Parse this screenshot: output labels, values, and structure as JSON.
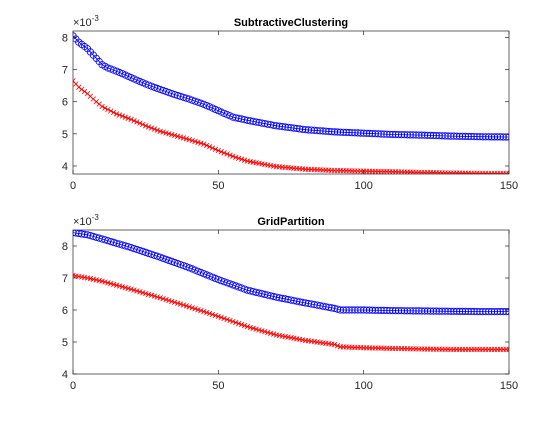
{
  "chart_data": [
    {
      "type": "line",
      "title": "SubtractiveClustering",
      "xlim": [
        0,
        150
      ],
      "ylim": [
        3.75,
        8.2
      ],
      "y_exponent_label": "×10",
      "y_exponent_power": "-3",
      "x_ticks": [
        0,
        50,
        100,
        150
      ],
      "y_ticks": [
        4,
        5,
        6,
        7,
        8
      ],
      "grid": false,
      "series": [
        {
          "marker": "o",
          "color": "#0000ff",
          "x": [
            0,
            2,
            5,
            8,
            10,
            12,
            15,
            20,
            25,
            30,
            35,
            40,
            45,
            50,
            55,
            60,
            70,
            80,
            90,
            100,
            110,
            120,
            130,
            140,
            150
          ],
          "values": [
            8.05,
            7.85,
            7.65,
            7.35,
            7.15,
            7.05,
            6.95,
            6.75,
            6.55,
            6.38,
            6.22,
            6.08,
            5.92,
            5.72,
            5.52,
            5.42,
            5.25,
            5.13,
            5.06,
            5.02,
            4.98,
            4.96,
            4.93,
            4.91,
            4.9
          ]
        },
        {
          "marker": "x",
          "color": "#ff0000",
          "x": [
            0,
            2,
            5,
            8,
            10,
            15,
            20,
            25,
            30,
            35,
            40,
            45,
            50,
            55,
            60,
            70,
            80,
            90,
            100,
            110,
            120,
            130,
            140,
            150
          ],
          "values": [
            6.65,
            6.45,
            6.25,
            6.0,
            5.85,
            5.62,
            5.45,
            5.25,
            5.08,
            4.95,
            4.82,
            4.68,
            4.48,
            4.3,
            4.15,
            3.98,
            3.9,
            3.86,
            3.84,
            3.82,
            3.8,
            3.78,
            3.77,
            3.76
          ]
        }
      ]
    },
    {
      "type": "line",
      "title": "GridPartition",
      "xlim": [
        0,
        150
      ],
      "ylim": [
        4,
        8.5
      ],
      "y_exponent_label": "×10",
      "y_exponent_power": "-3",
      "x_ticks": [
        0,
        50,
        100,
        150
      ],
      "y_ticks": [
        4,
        5,
        6,
        7,
        8
      ],
      "grid": false,
      "series": [
        {
          "marker": "o",
          "color": "#0000ff",
          "x": [
            0,
            5,
            10,
            20,
            30,
            40,
            50,
            60,
            70,
            80,
            90,
            92,
            100,
            110,
            120,
            130,
            140,
            150
          ],
          "values": [
            8.42,
            8.35,
            8.22,
            7.95,
            7.65,
            7.32,
            6.95,
            6.62,
            6.4,
            6.22,
            6.05,
            6.0,
            6.0,
            5.98,
            5.97,
            5.96,
            5.95,
            5.95
          ]
        },
        {
          "marker": "x",
          "color": "#ff0000",
          "x": [
            0,
            5,
            10,
            20,
            30,
            40,
            50,
            60,
            70,
            80,
            90,
            92,
            100,
            110,
            120,
            130,
            140,
            150
          ],
          "values": [
            7.08,
            7.0,
            6.9,
            6.65,
            6.38,
            6.1,
            5.8,
            5.48,
            5.22,
            5.05,
            4.92,
            4.85,
            4.82,
            4.8,
            4.78,
            4.77,
            4.77,
            4.77
          ]
        }
      ]
    }
  ]
}
